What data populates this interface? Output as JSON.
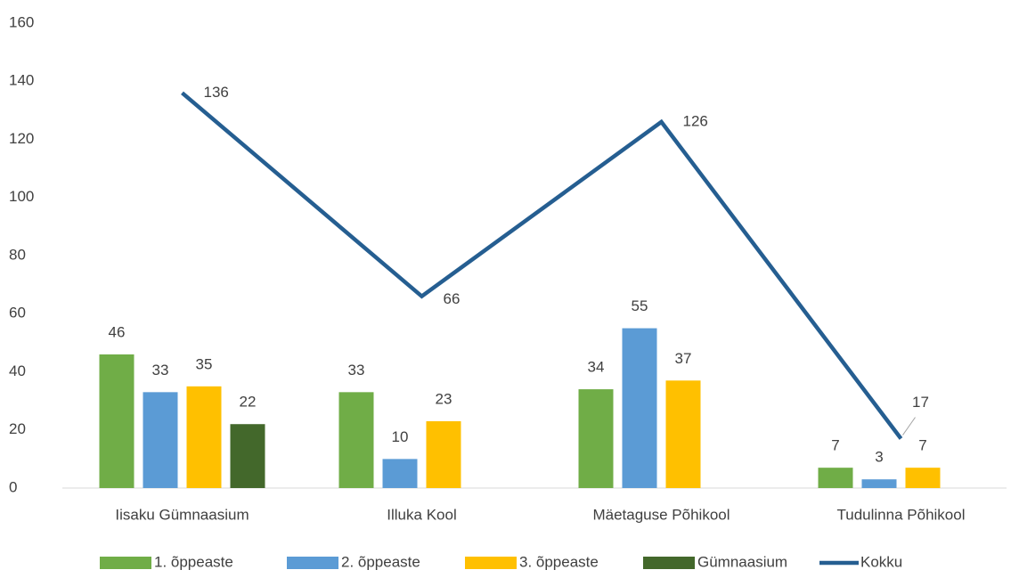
{
  "chart_data": {
    "type": "bar+line",
    "categories": [
      "Iisaku Gümnaasium",
      "Illuka Kool",
      "Mäetaguse Põhikool",
      "Tudulinna Põhikool"
    ],
    "series": [
      {
        "name": "1. õppeaste",
        "color": "#70ad47",
        "type": "bar",
        "values": [
          46,
          33,
          34,
          7
        ]
      },
      {
        "name": "2. õppeaste",
        "color": "#5b9bd5",
        "type": "bar",
        "values": [
          33,
          10,
          55,
          3
        ]
      },
      {
        "name": "3. õppeaste",
        "color": "#ffc000",
        "type": "bar",
        "values": [
          35,
          23,
          37,
          7
        ]
      },
      {
        "name": "Gümnaasium",
        "color": "#43682b",
        "type": "bar",
        "values": [
          22,
          null,
          null,
          null
        ]
      },
      {
        "name": "Kokku",
        "color": "#255e91",
        "type": "line",
        "values": [
          136,
          66,
          126,
          17
        ]
      }
    ],
    "ylim": [
      0,
      160
    ],
    "yticks": [
      0,
      20,
      40,
      60,
      80,
      100,
      120,
      140,
      160
    ],
    "grid": false,
    "legend": "bottom"
  }
}
